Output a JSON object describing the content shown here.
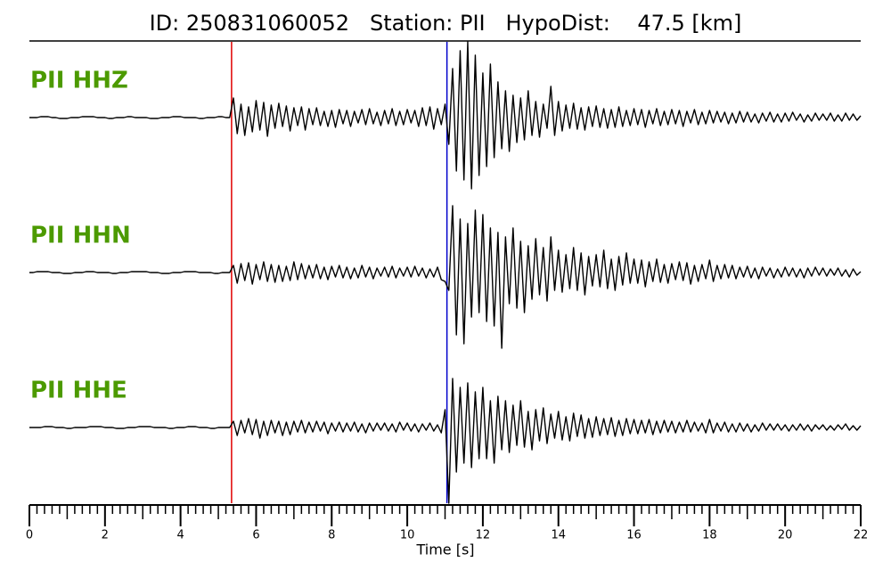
{
  "chart_data": {
    "type": "seismogram",
    "title": "ID: 250831060052   Station: PII   HypoDist:    47.5 [km]",
    "xlabel": "Time [s]",
    "xlim": [
      0,
      22
    ],
    "xticks": [
      0,
      2,
      4,
      6,
      8,
      10,
      12,
      14,
      16,
      18,
      20,
      22
    ],
    "xminor": 0.2,
    "ylim": [
      -100,
      100
    ],
    "label_color": "#4c9a00",
    "picks": [
      {
        "value": 5.35,
        "color": "#e00000"
      },
      {
        "value": 11.05,
        "color": "#0000cc"
      }
    ],
    "x": [
      0,
      0.1,
      0.2,
      0.3,
      0.4,
      0.5,
      0.6,
      0.7,
      0.8,
      0.9,
      1,
      1.1,
      1.2,
      1.3,
      1.4,
      1.5,
      1.6,
      1.7,
      1.8,
      1.9,
      2,
      2.1,
      2.2,
      2.3,
      2.4,
      2.5,
      2.6,
      2.7,
      2.8,
      2.9,
      3,
      3.1,
      3.2,
      3.3,
      3.4,
      3.5,
      3.6,
      3.7,
      3.8,
      3.9,
      4,
      4.1,
      4.2,
      4.3,
      4.4,
      4.5,
      4.6,
      4.7,
      4.8,
      4.9,
      5,
      5.1,
      5.2,
      5.3,
      5.4,
      5.5,
      5.6,
      5.7,
      5.8,
      5.9,
      6,
      6.1,
      6.2,
      6.3,
      6.4,
      6.5,
      6.6,
      6.7,
      6.8,
      6.9,
      7,
      7.1,
      7.2,
      7.3,
      7.4,
      7.5,
      7.6,
      7.7,
      7.8,
      7.9,
      8,
      8.1,
      8.2,
      8.3,
      8.4,
      8.5,
      8.6,
      8.7,
      8.8,
      8.9,
      9,
      9.1,
      9.2,
      9.3,
      9.4,
      9.5,
      9.6,
      9.7,
      9.8,
      9.9,
      10,
      10.1,
      10.2,
      10.3,
      10.4,
      10.5,
      10.6,
      10.7,
      10.8,
      10.9,
      11,
      11.1,
      11.2,
      11.3,
      11.4,
      11.5,
      11.6,
      11.7,
      11.8,
      11.9,
      12,
      12.1,
      12.2,
      12.3,
      12.4,
      12.5,
      12.6,
      12.7,
      12.8,
      12.9,
      13,
      13.1,
      13.2,
      13.3,
      13.4,
      13.5,
      13.6,
      13.7,
      13.8,
      13.9,
      14,
      14.1,
      14.2,
      14.3,
      14.4,
      14.5,
      14.6,
      14.7,
      14.8,
      14.9,
      15,
      15.1,
      15.2,
      15.3,
      15.4,
      15.5,
      15.6,
      15.7,
      15.8,
      15.9,
      16,
      16.1,
      16.2,
      16.3,
      16.4,
      16.5,
      16.6,
      16.7,
      16.8,
      16.9,
      17,
      17.1,
      17.2,
      17.3,
      17.4,
      17.5,
      17.6,
      17.7,
      17.8,
      17.9,
      18,
      18.1,
      18.2,
      18.3,
      18.4,
      18.5,
      18.6,
      18.7,
      18.8,
      18.9,
      19,
      19.1,
      19.2,
      19.3,
      19.4,
      19.5,
      19.6,
      19.7,
      19.8,
      19.9,
      20,
      20.1,
      20.2,
      20.3,
      20.4,
      20.5,
      20.6,
      20.7,
      20.8,
      20.9,
      21,
      21.1,
      21.2,
      21.3,
      21.4,
      21.5,
      21.6,
      21.7,
      21.8,
      21.9,
      22
    ],
    "series": [
      {
        "name": "PII HHZ",
        "color": "#000000",
        "values": [
          0,
          0,
          0,
          1,
          1,
          1,
          0,
          0,
          -1,
          -1,
          -1,
          0,
          0,
          0,
          1,
          1,
          1,
          1,
          0,
          0,
          0,
          -1,
          -1,
          0,
          0,
          0,
          1,
          1,
          0,
          0,
          0,
          0,
          -1,
          -1,
          -1,
          0,
          0,
          0,
          1,
          1,
          1,
          0,
          0,
          0,
          0,
          -1,
          -1,
          0,
          0,
          0,
          1,
          1,
          0,
          0,
          22,
          -18,
          15,
          -20,
          12,
          -16,
          19,
          -14,
          17,
          -21,
          14,
          -12,
          16,
          -10,
          13,
          -15,
          11,
          -9,
          12,
          -14,
          10,
          -8,
          11,
          -9,
          7,
          -10,
          8,
          -11,
          9,
          -7,
          8,
          -10,
          7,
          -6,
          9,
          -8,
          10,
          -7,
          6,
          -9,
          8,
          -7,
          10,
          -9,
          7,
          -8,
          9,
          -6,
          8,
          -10,
          11,
          -9,
          12,
          -13,
          10,
          -8,
          15,
          -30,
          55,
          -60,
          75,
          -70,
          85,
          -80,
          70,
          -65,
          50,
          -55,
          60,
          -45,
          40,
          -35,
          30,
          -38,
          25,
          -28,
          22,
          -25,
          30,
          -20,
          18,
          -22,
          15,
          -12,
          35,
          -20,
          18,
          -15,
          14,
          -12,
          16,
          -13,
          11,
          -14,
          12,
          -10,
          13,
          -11,
          10,
          -12,
          9,
          -11,
          12,
          -10,
          8,
          -9,
          10,
          -8,
          9,
          -11,
          8,
          -7,
          10,
          -9,
          7,
          -8,
          9,
          -7,
          8,
          -10,
          7,
          -6,
          9,
          -8,
          6,
          -7,
          8,
          -6,
          7,
          -5,
          6,
          -7,
          5,
          -6,
          7,
          -5,
          6,
          -5,
          4,
          -6,
          5,
          -4,
          6,
          -5,
          4,
          -5,
          5,
          -4,
          6,
          -3,
          4,
          -5,
          3,
          -4,
          5,
          -3,
          4,
          -3,
          5,
          -4,
          3,
          -4,
          5,
          -3,
          4,
          -3,
          2
        ]
      },
      {
        "name": "PII HHN",
        "color": "#000000",
        "values": [
          0,
          0,
          1,
          1,
          1,
          1,
          0,
          0,
          0,
          -1,
          -1,
          -1,
          0,
          0,
          0,
          1,
          1,
          1,
          0,
          0,
          0,
          0,
          -1,
          -1,
          0,
          0,
          0,
          1,
          1,
          1,
          1,
          1,
          0,
          0,
          0,
          -1,
          -1,
          -1,
          0,
          0,
          0,
          1,
          1,
          1,
          1,
          0,
          0,
          0,
          0,
          -1,
          -1,
          0,
          0,
          0,
          8,
          -12,
          10,
          -9,
          11,
          -13,
          9,
          -8,
          12,
          -10,
          9,
          -11,
          8,
          -10,
          7,
          -9,
          12,
          -8,
          10,
          -7,
          8,
          -6,
          9,
          -7,
          6,
          -8,
          7,
          -5,
          8,
          -6,
          6,
          -7,
          5,
          -6,
          8,
          -5,
          6,
          -7,
          5,
          -4,
          6,
          -5,
          7,
          -6,
          5,
          -4,
          6,
          -5,
          7,
          -4,
          5,
          -6,
          4,
          -5,
          6,
          -8,
          -10,
          -20,
          75,
          -70,
          60,
          -80,
          55,
          -50,
          70,
          -45,
          65,
          -55,
          50,
          -60,
          45,
          -85,
          40,
          -35,
          50,
          -40,
          35,
          -45,
          30,
          -30,
          38,
          -25,
          28,
          -32,
          40,
          -20,
          25,
          -22,
          20,
          -18,
          28,
          -20,
          22,
          -25,
          18,
          -15,
          20,
          -16,
          25,
          -18,
          15,
          -20,
          18,
          -14,
          22,
          -12,
          15,
          -12,
          14,
          -16,
          12,
          -10,
          15,
          -11,
          9,
          -12,
          10,
          -8,
          12,
          -9,
          11,
          -13,
          8,
          -10,
          9,
          -7,
          14,
          -10,
          8,
          -7,
          9,
          -6,
          8,
          -7,
          6,
          -5,
          7,
          -6,
          5,
          -7,
          6,
          -4,
          5,
          -6,
          4,
          -5,
          6,
          -4,
          5,
          -5,
          4,
          -6,
          5,
          -4,
          6,
          -3,
          5,
          -4,
          4,
          -3,
          5,
          -4,
          3,
          -5,
          4,
          -3,
          1
        ]
      },
      {
        "name": "PII HHE",
        "color": "#000000",
        "values": [
          0,
          0,
          0,
          0,
          1,
          1,
          1,
          0,
          0,
          0,
          -1,
          -1,
          0,
          0,
          0,
          0,
          1,
          1,
          1,
          1,
          0,
          0,
          0,
          -1,
          -1,
          -1,
          0,
          0,
          0,
          1,
          1,
          1,
          1,
          0,
          0,
          0,
          0,
          -1,
          -1,
          0,
          0,
          0,
          1,
          1,
          1,
          0,
          0,
          0,
          -1,
          -1,
          0,
          0,
          0,
          0,
          7,
          -9,
          8,
          -6,
          10,
          -8,
          9,
          -12,
          7,
          -9,
          8,
          -6,
          7,
          -9,
          6,
          -8,
          7,
          -5,
          8,
          -6,
          6,
          -5,
          7,
          -4,
          6,
          -7,
          5,
          -4,
          6,
          -5,
          5,
          -4,
          6,
          -5,
          4,
          -6,
          5,
          -4,
          5,
          -3,
          5,
          -4,
          4,
          -5,
          6,
          -3,
          5,
          -4,
          4,
          -5,
          4,
          -3,
          5,
          -4,
          3,
          -6,
          20,
          -85,
          55,
          -50,
          45,
          -40,
          50,
          -45,
          40,
          -35,
          45,
          -35,
          30,
          -40,
          35,
          -25,
          30,
          -28,
          25,
          -20,
          30,
          -22,
          18,
          -25,
          20,
          -15,
          22,
          -18,
          15,
          -12,
          18,
          -14,
          12,
          -15,
          16,
          -10,
          14,
          -12,
          10,
          -11,
          12,
          -9,
          10,
          -8,
          11,
          -10,
          8,
          -9,
          10,
          -7,
          9,
          -7,
          8,
          -6,
          9,
          -8,
          7,
          -6,
          8,
          -5,
          7,
          -6,
          6,
          -5,
          8,
          -5,
          6,
          -4,
          5,
          -6,
          9,
          -6,
          5,
          -4,
          6,
          -5,
          4,
          -5,
          5,
          -4,
          4,
          -5,
          3,
          -4,
          5,
          -3,
          4,
          -3,
          4,
          -3,
          3,
          -4,
          3,
          -3,
          4,
          -3,
          3,
          -4,
          3,
          -2,
          3,
          -3,
          2,
          -3,
          3,
          -2,
          4,
          -3,
          2,
          -3,
          2
        ]
      }
    ]
  }
}
